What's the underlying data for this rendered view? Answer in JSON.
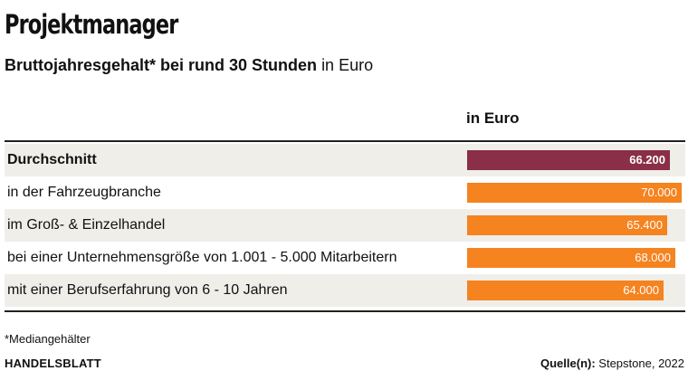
{
  "title": "Projektmanager",
  "subtitle": {
    "bold": "Bruttojahresgehalt* bei rund 30 Stunden",
    "normal": "in Euro"
  },
  "column_header": "in Euro",
  "footnote": "*Mediangehälter",
  "brand": "HANDELSBLATT",
  "source": {
    "label": "Quelle(n):",
    "value": "Stepstone, 2022"
  },
  "colors": {
    "highlight": "#8a2f45",
    "bar": "#f58320",
    "row_shade": "#efeee9"
  },
  "chart_data": {
    "type": "bar",
    "orientation": "horizontal",
    "title": "Projektmanager",
    "subtitle": "Bruttojahresgehalt* bei rund 30 Stunden in Euro",
    "value_header": "in Euro",
    "categories": [
      "Durchschnitt",
      "in der Fahrzeugbranche",
      "im Groß- & Einzelhandel",
      "bei einer Unternehmensgröße von 1.001 - 5.000 Mitarbeitern",
      "mit einer Berufserfahrung von 6 - 10 Jahren"
    ],
    "values": [
      66200,
      70000,
      65400,
      68000,
      64000
    ],
    "value_labels": [
      "66.200",
      "70.000",
      "65.400",
      "68.000",
      "64.000"
    ],
    "highlight_index": 0,
    "xlim": [
      0,
      70000
    ]
  }
}
